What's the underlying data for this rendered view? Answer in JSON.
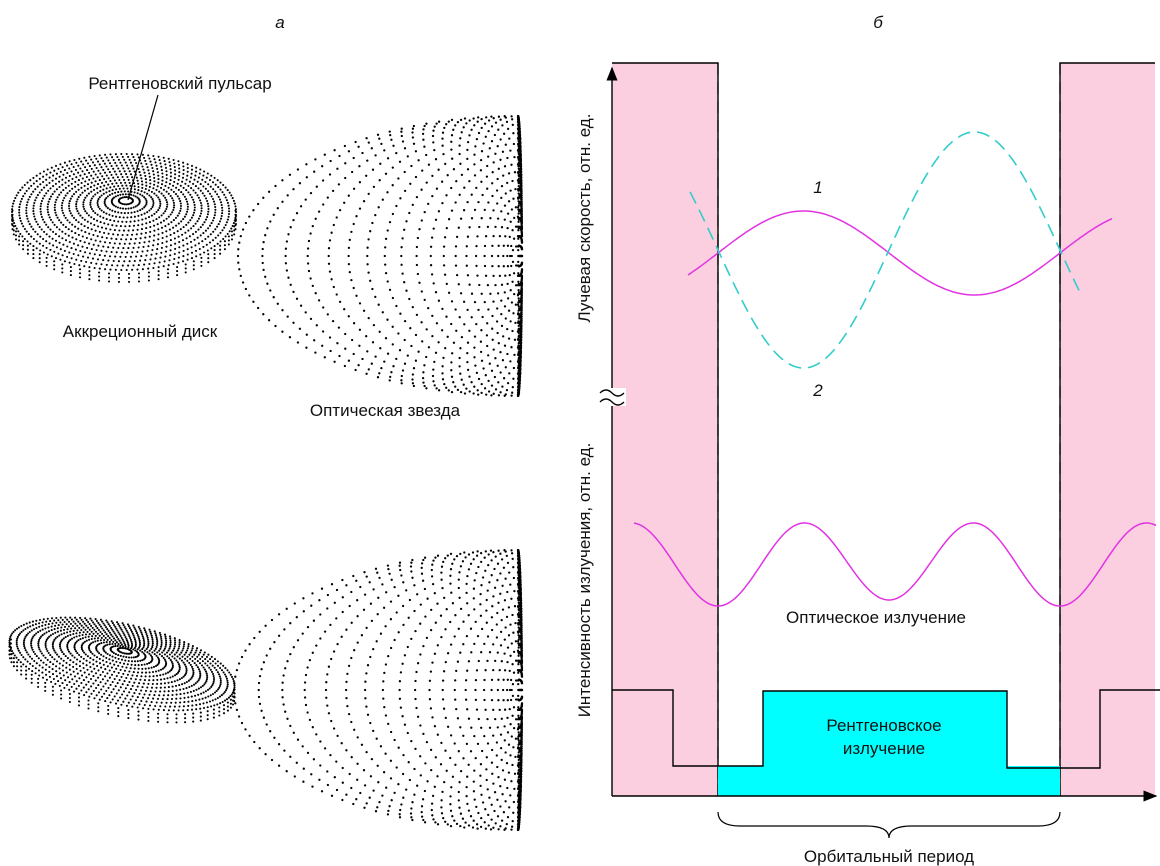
{
  "panel_a": {
    "label": "а",
    "pulsar_label": "Рентгеновский пульсар",
    "disk_label": "Аккреционный диск",
    "star_label": "Оптическая звезда"
  },
  "panel_b": {
    "label": "б",
    "y_label_top": "Лучевая скорость, отн. ед.",
    "y_label_bottom": "Интенсивность излучения, отн. ед.",
    "curve1_label": "1",
    "curve2_label": "2",
    "optical_label": "Оптическое излучение",
    "xray_label_line1": "Рентгеновское",
    "xray_label_line2": "излучение",
    "period_label": "Орбитальный период"
  },
  "colors": {
    "eclipse_fill": "#fbcfdf",
    "magenta_curve": "#e233e2",
    "cyan_curve": "#33cccc",
    "xray_fill": "#00ffff",
    "ink": "#000000"
  }
}
